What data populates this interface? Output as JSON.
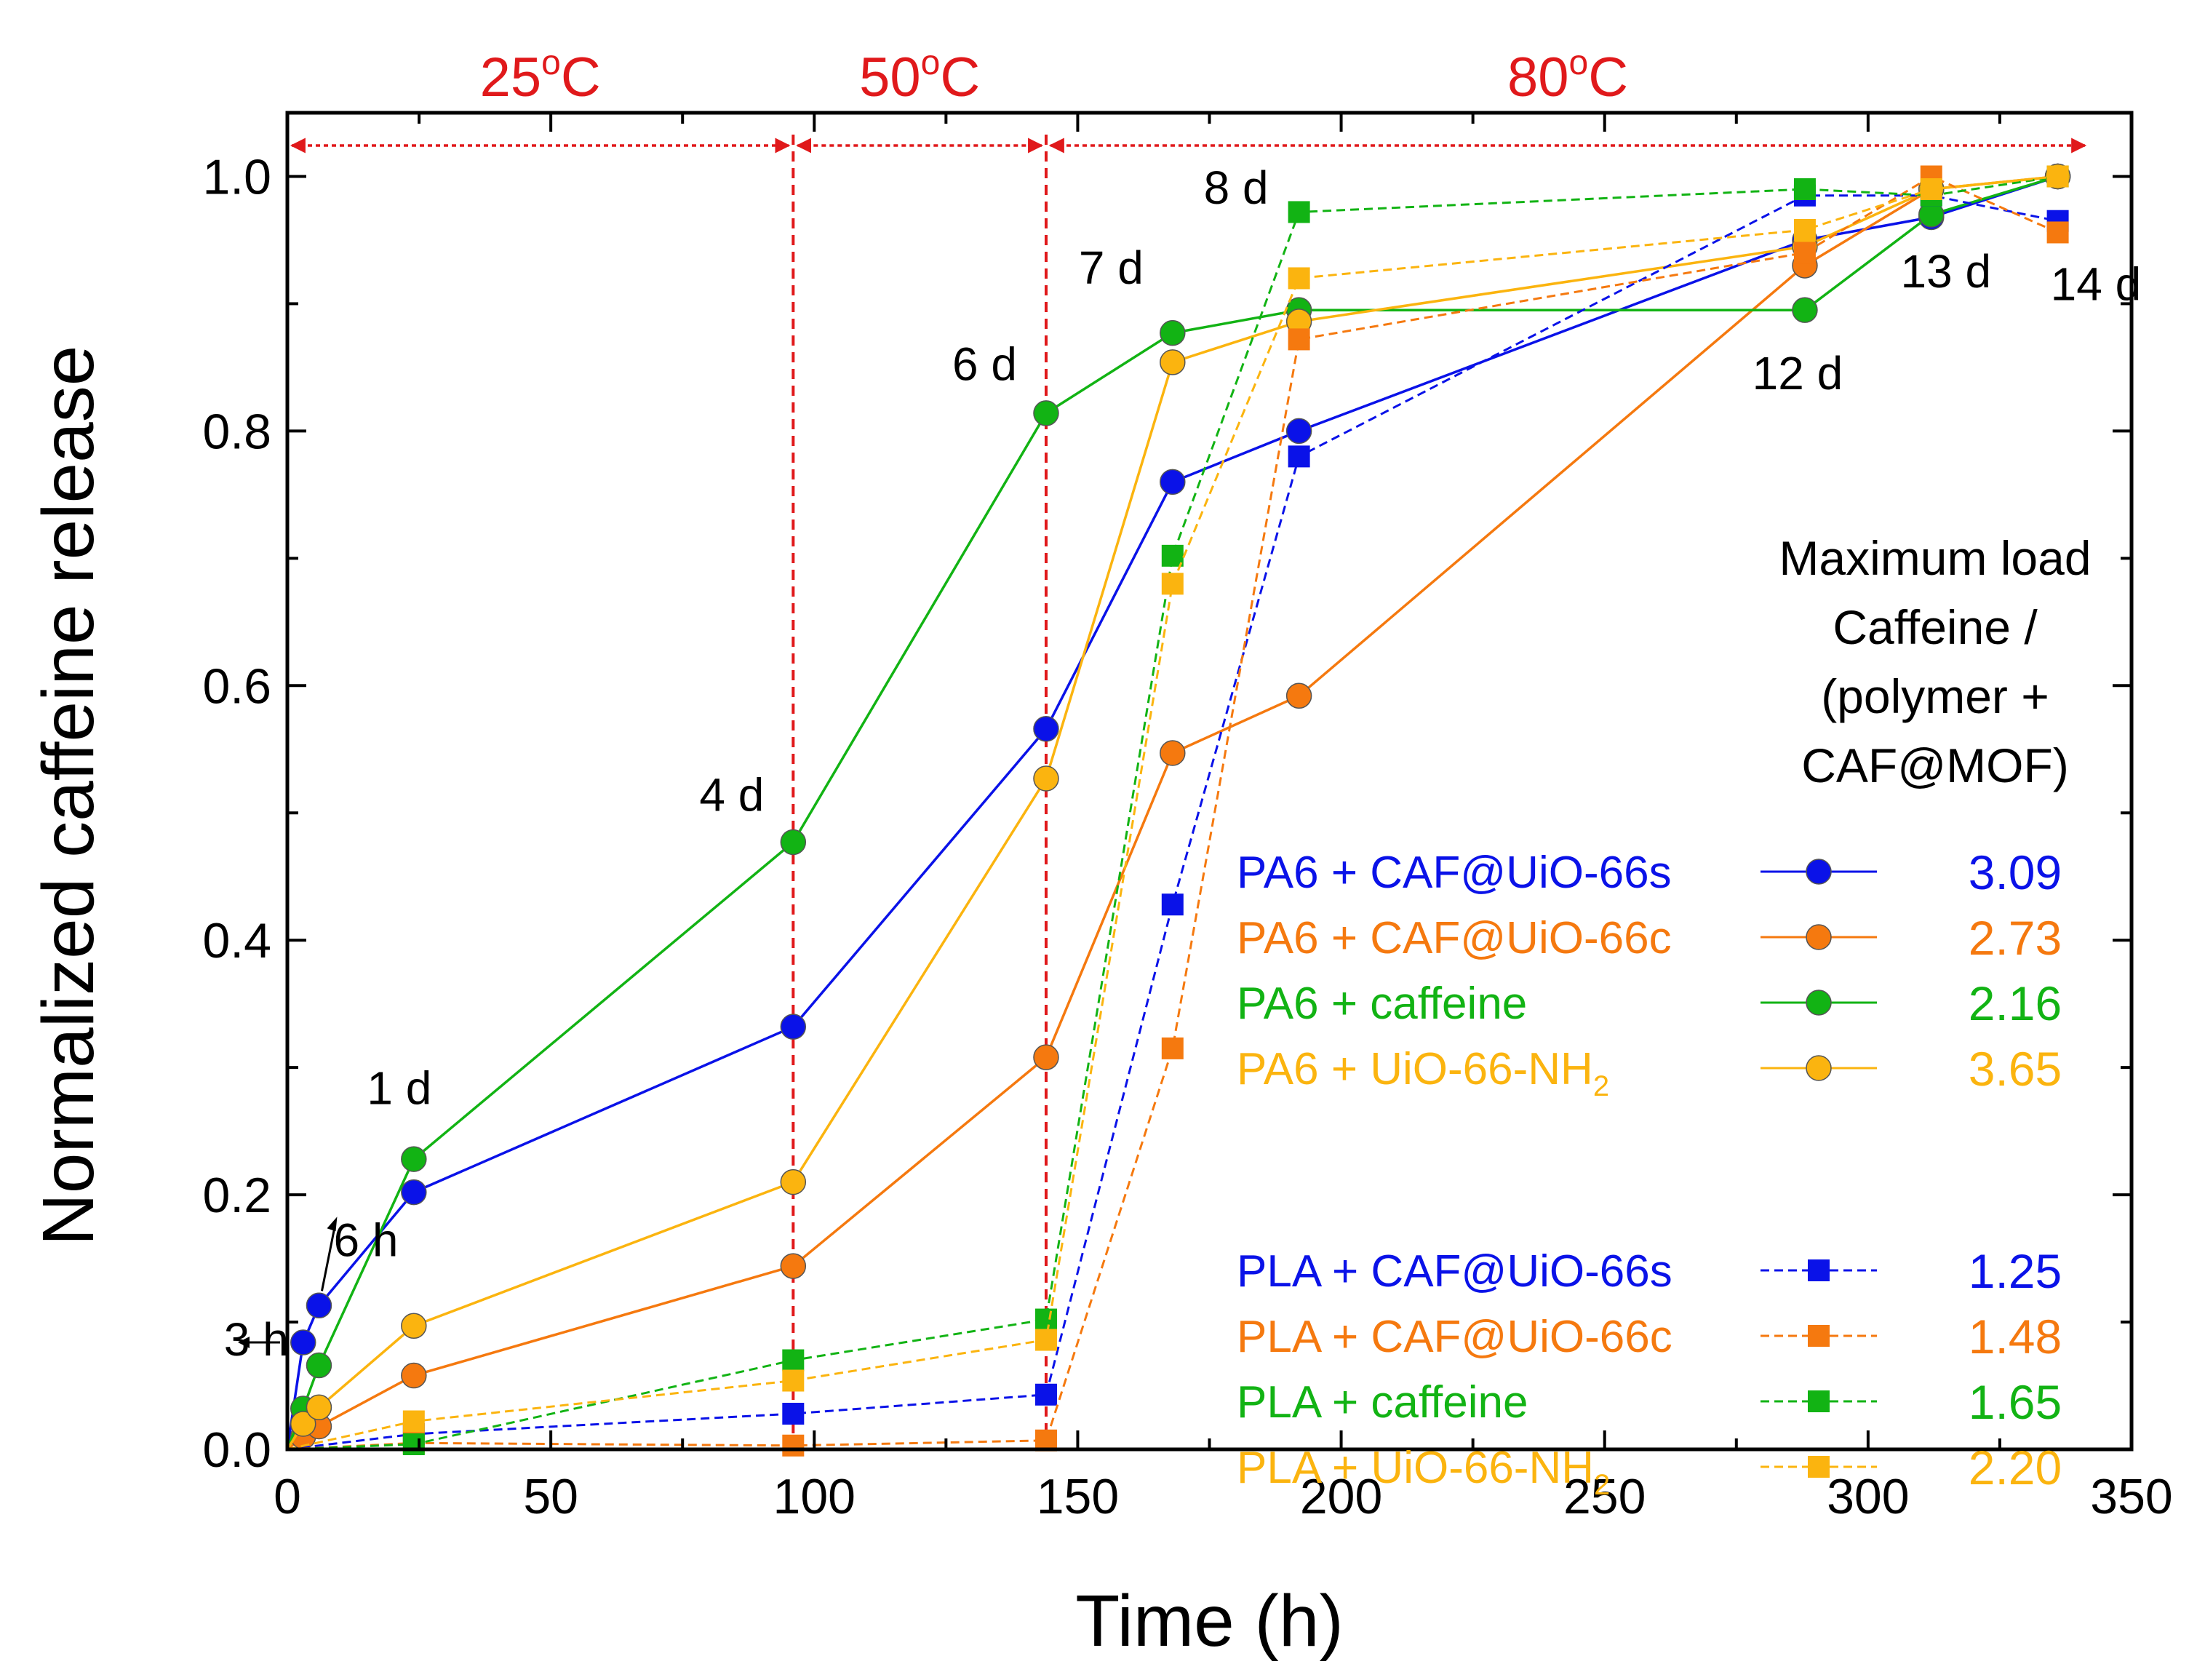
{
  "chart_data": {
    "type": "line",
    "title": "",
    "xlabel": "Time (h)",
    "ylabel": "Normalized caffeine release",
    "xlim": [
      0,
      350
    ],
    "ylim": [
      0,
      1.05
    ],
    "xticks": [
      0,
      50,
      100,
      150,
      200,
      250,
      300,
      350
    ],
    "yticks": [
      0.0,
      0.2,
      0.4,
      0.6,
      0.8,
      1.0
    ],
    "xtick_labels": [
      "0",
      "50",
      "100",
      "150",
      "200",
      "250",
      "300",
      "350"
    ],
    "ytick_labels": [
      "0.0",
      "0.2",
      "0.4",
      "0.6",
      "0.8",
      "1.0"
    ],
    "temperature_zones": [
      {
        "label": "25",
        "unit": "C",
        "start": 0,
        "end": 96
      },
      {
        "label": "50",
        "unit": "C",
        "start": 96,
        "end": 144
      },
      {
        "label": "80",
        "unit": "C",
        "start": 144,
        "end": 342
      }
    ],
    "degree_symbol": "o",
    "vlines": [
      96,
      144
    ],
    "annotations": [
      {
        "text": "3 h",
        "x": 3,
        "y": 0.084
      },
      {
        "text": "6 h",
        "x": 6,
        "y": 0.113
      },
      {
        "text": "1 d",
        "x": 24,
        "y": 0.23
      },
      {
        "text": "4 d",
        "x": 96,
        "y": 0.49
      },
      {
        "text": "6 d",
        "x": 144,
        "y": 0.82
      },
      {
        "text": "7 d",
        "x": 168,
        "y": 0.89
      },
      {
        "text": "8 d",
        "x": 192,
        "y": 0.97
      },
      {
        "text": "12 d",
        "x": 288,
        "y": 0.89
      },
      {
        "text": "13 d",
        "x": 312,
        "y": 0.97
      },
      {
        "text": "14 d",
        "x": 336,
        "y": 0.96
      }
    ],
    "legend": {
      "title_lines": [
        "Maximum load",
        "Caffeine /",
        "(polymer +",
        "CAF@MOF)"
      ],
      "position": "bottom-right"
    },
    "series": [
      {
        "name": "PA6 + CAF@UiO-66s",
        "sub": "",
        "value": "3.09",
        "color": "#0a12e8",
        "marker": "circle",
        "dash": false,
        "x": [
          0,
          3,
          6,
          24,
          96,
          144,
          168,
          192,
          288,
          312,
          336
        ],
        "y": [
          0.0,
          0.084,
          0.113,
          0.202,
          0.332,
          0.566,
          0.76,
          0.8,
          0.95,
          0.968,
          1.0
        ]
      },
      {
        "name": "PA6 + CAF@UiO-66c",
        "sub": "",
        "value": "2.73",
        "color": "#f5790f",
        "marker": "circle",
        "dash": false,
        "x": [
          0,
          3,
          6,
          24,
          96,
          144,
          168,
          192,
          288,
          312,
          336
        ],
        "y": [
          0.0,
          0.01,
          0.018,
          0.058,
          0.144,
          0.308,
          0.547,
          0.592,
          0.93,
          0.99,
          1.0
        ]
      },
      {
        "name": "PA6 + caffeine",
        "sub": "",
        "value": "2.16",
        "color": "#12b314",
        "marker": "circle",
        "dash": false,
        "x": [
          0,
          3,
          6,
          24,
          96,
          144,
          168,
          192,
          288,
          312,
          336
        ],
        "y": [
          0.0,
          0.032,
          0.066,
          0.228,
          0.477,
          0.814,
          0.877,
          0.895,
          0.895,
          0.97,
          1.0
        ]
      },
      {
        "name": "PA6 + UiO-66-NH",
        "sub": "2",
        "value": "3.65",
        "color": "#fbb40f",
        "marker": "circle",
        "dash": false,
        "x": [
          0,
          3,
          6,
          24,
          96,
          144,
          168,
          192,
          288,
          312,
          336
        ],
        "y": [
          0.0,
          0.02,
          0.033,
          0.097,
          0.21,
          0.527,
          0.854,
          0.886,
          0.945,
          0.99,
          1.0
        ]
      },
      {
        "name": "PLA + CAF@UiO-66s",
        "sub": "",
        "value": "1.25",
        "color": "#0a12e8",
        "marker": "square",
        "dash": true,
        "x": [
          0,
          24,
          96,
          144,
          168,
          192,
          288,
          312,
          336
        ],
        "y": [
          0.0,
          0.012,
          0.028,
          0.043,
          0.428,
          0.78,
          0.985,
          0.985,
          0.965
        ]
      },
      {
        "name": "PLA + CAF@UiO-66c",
        "sub": "",
        "value": "1.48",
        "color": "#f5790f",
        "marker": "square",
        "dash": true,
        "x": [
          0,
          24,
          96,
          144,
          168,
          192,
          288,
          312,
          336
        ],
        "y": [
          0.0,
          0.005,
          0.003,
          0.007,
          0.315,
          0.872,
          0.94,
          1.0,
          0.956
        ]
      },
      {
        "name": "PLA + caffeine",
        "sub": "",
        "value": "1.65",
        "color": "#12b314",
        "marker": "square",
        "dash": true,
        "x": [
          0,
          24,
          96,
          144,
          168,
          192,
          288,
          312,
          336
        ],
        "y": [
          0.0,
          0.004,
          0.07,
          0.102,
          0.702,
          0.972,
          0.99,
          0.985,
          1.0
        ]
      },
      {
        "name": "PLA + UiO-66-NH",
        "sub": "2",
        "value": "2.20",
        "color": "#fbb40f",
        "marker": "square",
        "dash": true,
        "x": [
          0,
          24,
          96,
          144,
          168,
          192,
          288,
          312,
          336
        ],
        "y": [
          0.0,
          0.022,
          0.054,
          0.086,
          0.68,
          0.92,
          0.958,
          0.99,
          1.0
        ]
      }
    ]
  }
}
